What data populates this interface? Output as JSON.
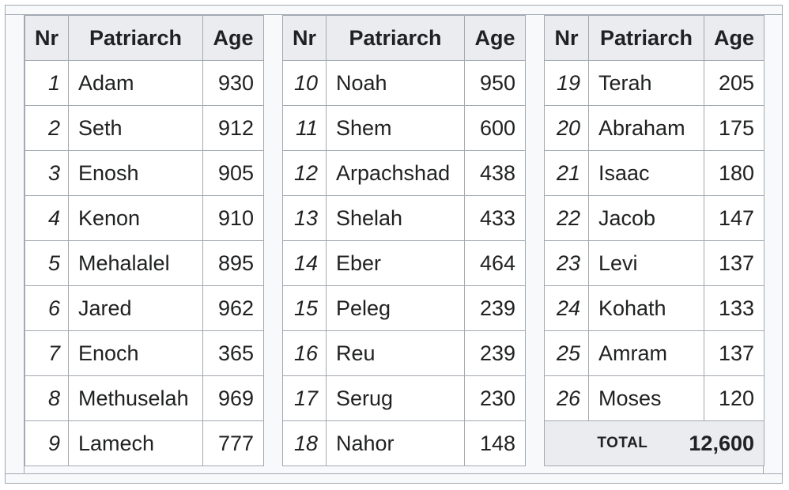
{
  "headers": {
    "nr": "Nr",
    "patriarch": "Patriarch",
    "age": "Age"
  },
  "columns": [
    {
      "rows": [
        {
          "nr": "1",
          "name": "Adam",
          "age": "930"
        },
        {
          "nr": "2",
          "name": "Seth",
          "age": "912"
        },
        {
          "nr": "3",
          "name": "Enosh",
          "age": "905"
        },
        {
          "nr": "4",
          "name": "Kenon",
          "age": "910"
        },
        {
          "nr": "5",
          "name": "Mehalalel",
          "age": "895"
        },
        {
          "nr": "6",
          "name": "Jared",
          "age": "962"
        },
        {
          "nr": "7",
          "name": "Enoch",
          "age": "365"
        },
        {
          "nr": "8",
          "name": "Methuselah",
          "age": "969"
        },
        {
          "nr": "9",
          "name": "Lamech",
          "age": "777"
        }
      ]
    },
    {
      "rows": [
        {
          "nr": "10",
          "name": "Noah",
          "age": "950"
        },
        {
          "nr": "11",
          "name": "Shem",
          "age": "600"
        },
        {
          "nr": "12",
          "name": "Arpachshad",
          "age": "438"
        },
        {
          "nr": "13",
          "name": "Shelah",
          "age": "433"
        },
        {
          "nr": "14",
          "name": "Eber",
          "age": "464"
        },
        {
          "nr": "15",
          "name": "Peleg",
          "age": "239"
        },
        {
          "nr": "16",
          "name": "Reu",
          "age": "239"
        },
        {
          "nr": "17",
          "name": "Serug",
          "age": "230"
        },
        {
          "nr": "18",
          "name": "Nahor",
          "age": "148"
        }
      ]
    },
    {
      "rows": [
        {
          "nr": "19",
          "name": "Terah",
          "age": "205"
        },
        {
          "nr": "20",
          "name": "Abraham",
          "age": "175"
        },
        {
          "nr": "21",
          "name": "Isaac",
          "age": "180"
        },
        {
          "nr": "22",
          "name": "Jacob",
          "age": "147"
        },
        {
          "nr": "23",
          "name": "Levi",
          "age": "137"
        },
        {
          "nr": "24",
          "name": "Kohath",
          "age": "133"
        },
        {
          "nr": "25",
          "name": "Amram",
          "age": "137"
        },
        {
          "nr": "26",
          "name": "Moses",
          "age": "120"
        }
      ]
    }
  ],
  "total": {
    "label": "TOTAL",
    "value": "12,600"
  }
}
